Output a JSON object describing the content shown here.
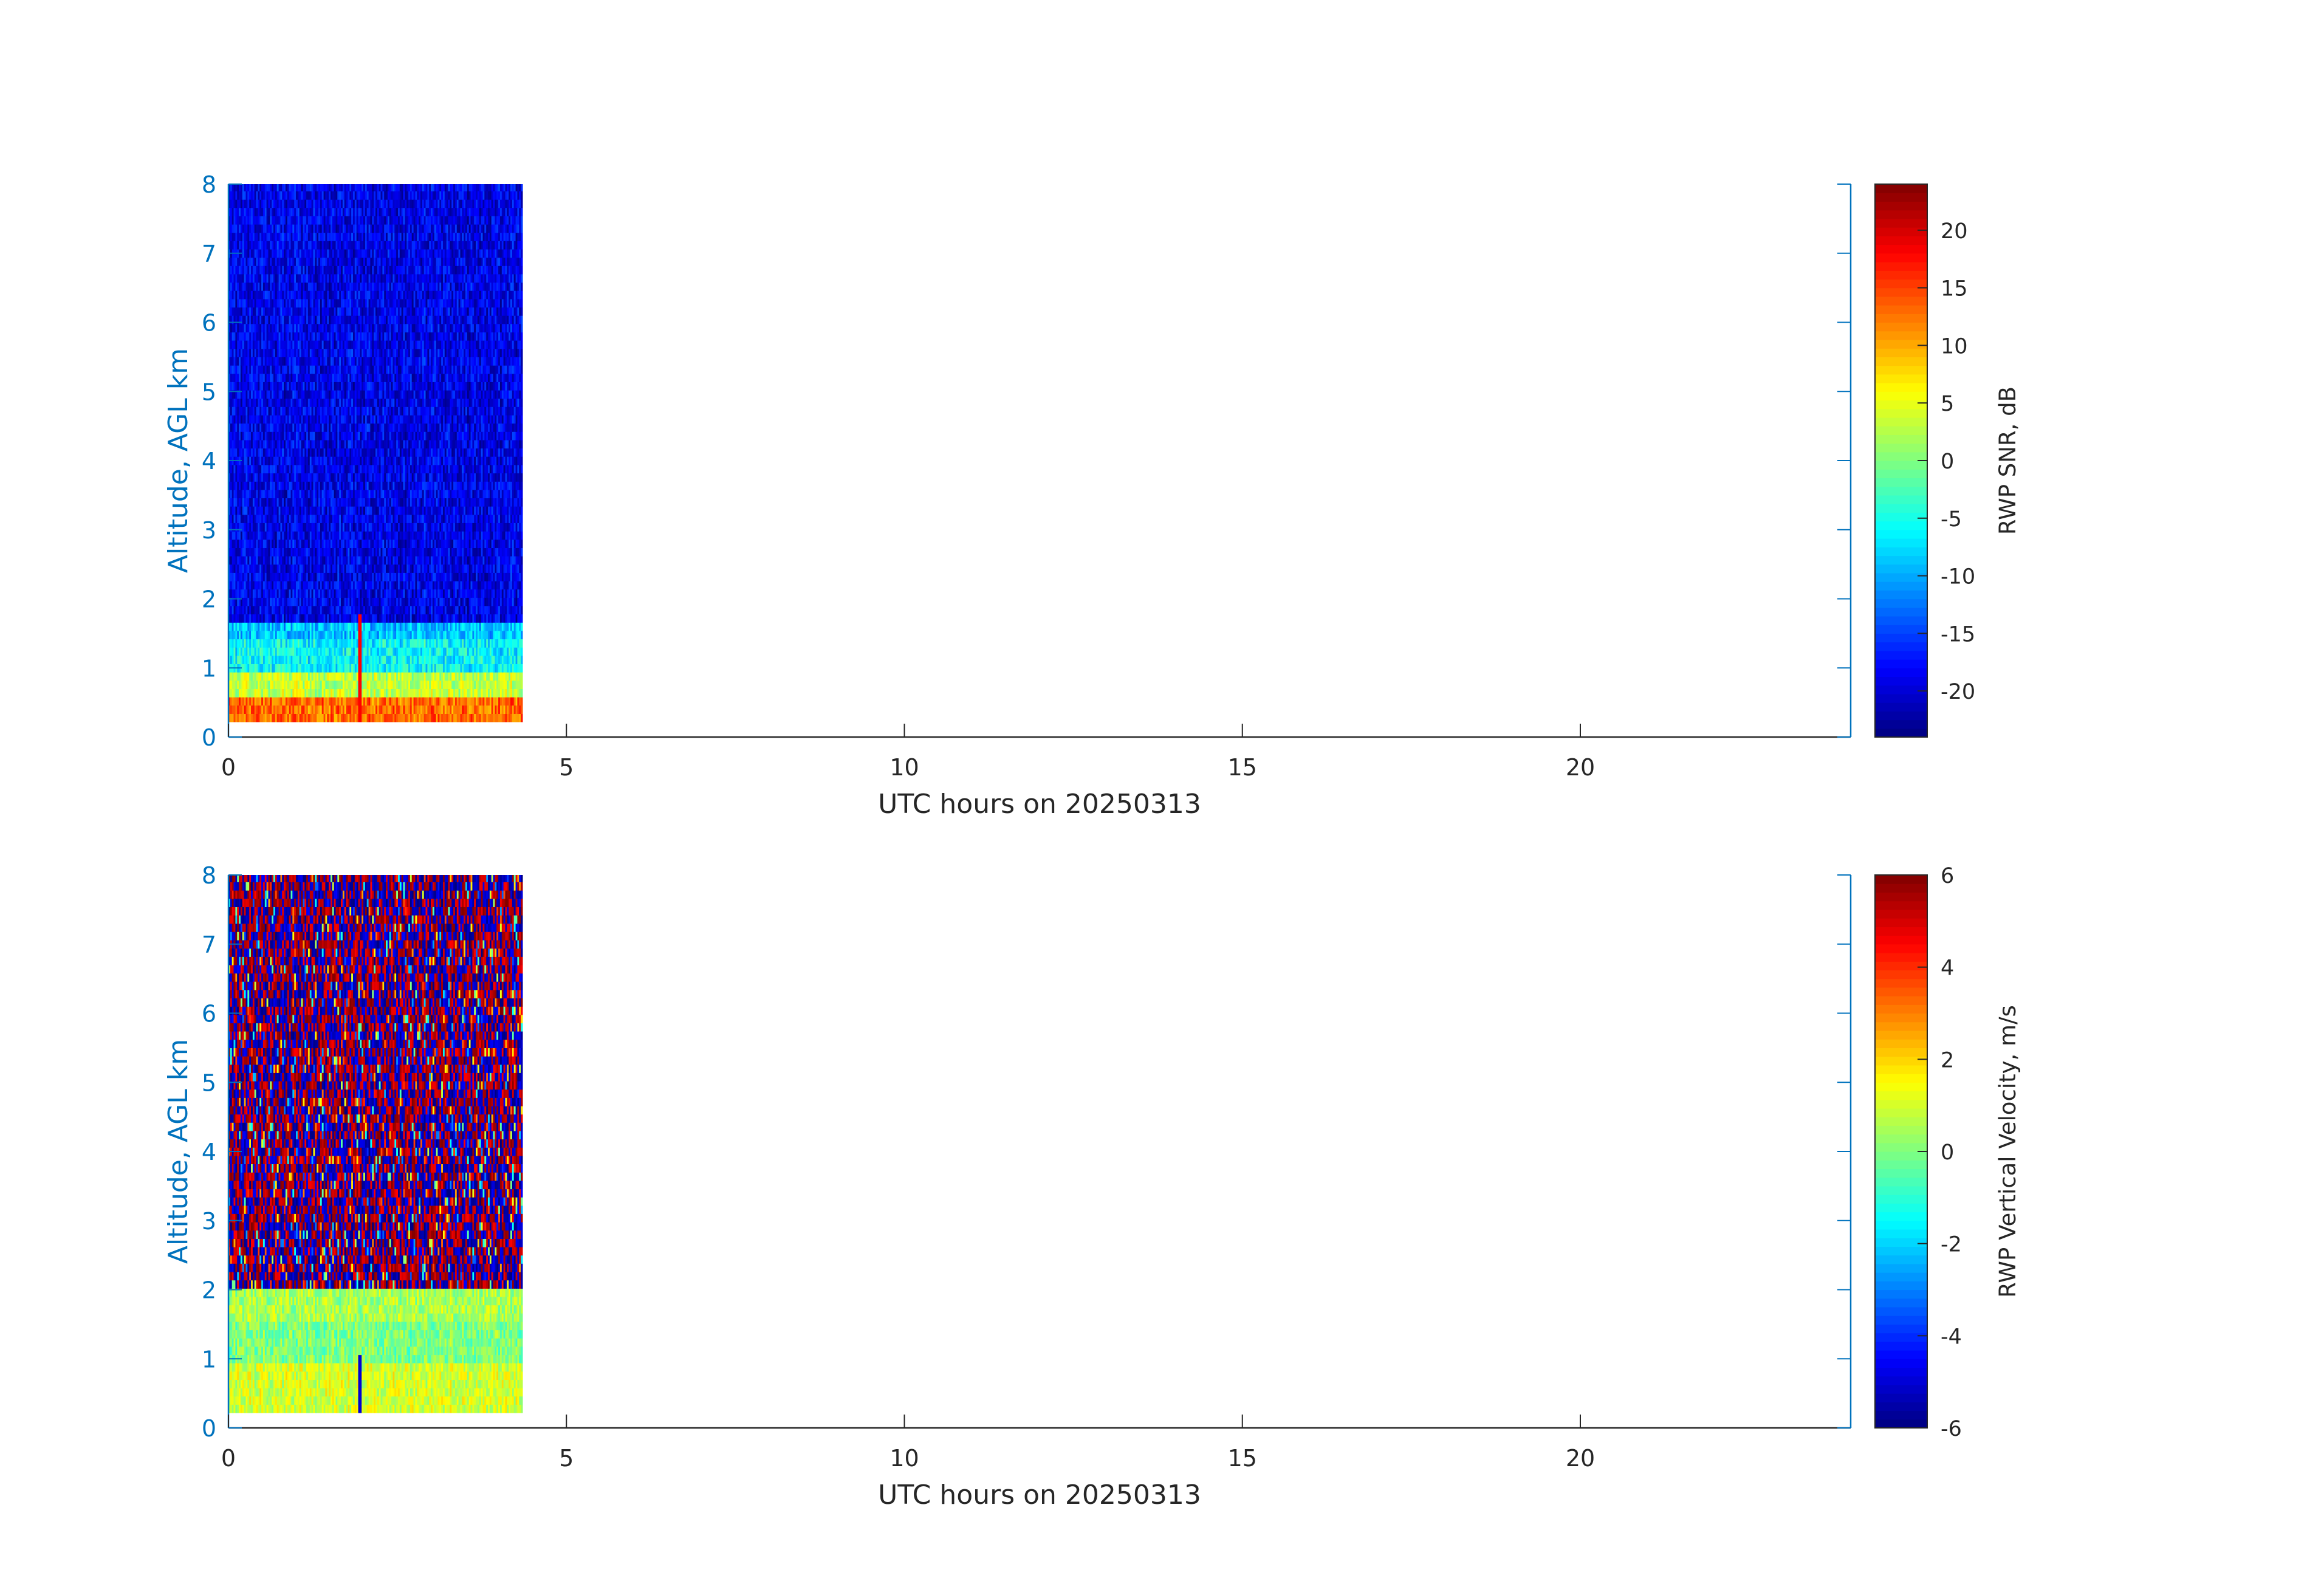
{
  "chart_data": [
    {
      "type": "heatmap",
      "panel": "snr",
      "xlabel": "UTC hours on 20250313",
      "ylabel": "Altitude, AGL km",
      "xlim": [
        0,
        24
      ],
      "ylim": [
        0,
        8
      ],
      "xticks": [
        0,
        5,
        10,
        15,
        20
      ],
      "yticks": [
        0,
        1,
        2,
        3,
        4,
        5,
        6,
        7,
        8
      ],
      "colorbar": {
        "label": "RWP SNR, dB",
        "clim": [
          -24,
          24
        ],
        "ticks": [
          -20,
          -15,
          -10,
          -5,
          0,
          5,
          10,
          15,
          20
        ],
        "colormap": "jet"
      },
      "data_extent": {
        "x": [
          0,
          4.35
        ],
        "y": [
          0.22,
          8
        ]
      },
      "profile": [
        {
          "y_from": 0.22,
          "y_to": 0.55,
          "value": 13
        },
        {
          "y_from": 0.55,
          "y_to": 0.9,
          "value": 3
        },
        {
          "y_from": 0.9,
          "y_to": 1.4,
          "value": -6
        },
        {
          "y_from": 1.4,
          "y_to": 1.62,
          "value": -9
        },
        {
          "y_from": 1.62,
          "y_to": 8,
          "value": -19
        }
      ],
      "features": [
        {
          "x": 1.95,
          "y_from": 0.22,
          "y_to": 1.8,
          "value": 18
        }
      ]
    },
    {
      "type": "heatmap",
      "panel": "vertical-velocity",
      "xlabel": "UTC hours on 20250313",
      "ylabel": "Altitude, AGL km",
      "xlim": [
        0,
        24
      ],
      "ylim": [
        0,
        8
      ],
      "xticks": [
        0,
        5,
        10,
        15,
        20
      ],
      "yticks": [
        0,
        1,
        2,
        3,
        4,
        5,
        6,
        7,
        8
      ],
      "colorbar": {
        "label": "RWP Vertical Velocity, m/s",
        "clim": [
          -6,
          6
        ],
        "ticks": [
          -6,
          -4,
          -2,
          0,
          2,
          4,
          6
        ],
        "colormap": "jet"
      },
      "data_extent": {
        "x": [
          0,
          4.35
        ],
        "y": [
          0.22,
          8
        ]
      },
      "profile": [
        {
          "y_from": 0.22,
          "y_to": 0.9,
          "value": 1
        },
        {
          "y_from": 0.9,
          "y_to": 1.6,
          "value": 0
        },
        {
          "y_from": 1.6,
          "y_to": 2.05,
          "value": 0.5
        },
        {
          "y_from": 2.05,
          "y_to": 8,
          "value": "noise (-6 to 6)"
        }
      ],
      "features": [
        {
          "x": 1.95,
          "y_from": 0.22,
          "y_to": 1.1,
          "value": -5
        }
      ]
    }
  ]
}
